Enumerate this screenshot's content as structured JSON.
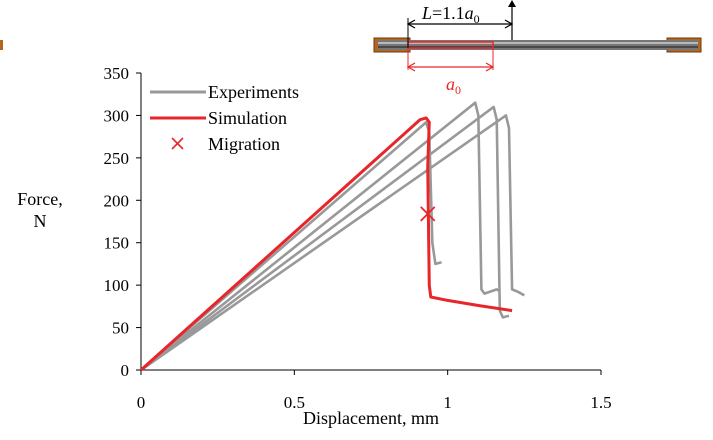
{
  "colors": {
    "experiment": "#999999",
    "simulation": "#e8262a",
    "migration": "#e8262a",
    "specimen_wood": "#b5651d",
    "specimen_rod": "#555555"
  },
  "inset": {
    "length_label_L": "L",
    "length_label_eq": "=1.1",
    "length_label_a": "a",
    "length_label_sub": "0",
    "crack_label_a": "a",
    "crack_label_sub": "0"
  },
  "chart_data": {
    "type": "line",
    "xlabel": "Displacement, mm",
    "ylabel_line1": "Force,",
    "ylabel_line2": "N",
    "xlim": [
      0,
      1.5
    ],
    "ylim": [
      0,
      350
    ],
    "xticks": [
      "0",
      "0.5",
      "1",
      "1.5"
    ],
    "yticks": [
      "0",
      "50",
      "100",
      "150",
      "200",
      "250",
      "300",
      "350"
    ],
    "legend": [
      {
        "name": "Experiments",
        "marker": "line",
        "color": "#999999"
      },
      {
        "name": "Simulation",
        "marker": "line",
        "color": "#e8262a"
      },
      {
        "name": "Migration",
        "marker": "x",
        "color": "#e8262a"
      }
    ],
    "series": [
      {
        "name": "Experiments",
        "color": "#999999",
        "points": [
          [
            0,
            0
          ],
          [
            0.93,
            292
          ],
          [
            0.94,
            280
          ],
          [
            0.95,
            150
          ],
          [
            0.96,
            125
          ],
          [
            0.98,
            127
          ]
        ]
      },
      {
        "color": "#999999",
        "points": [
          [
            0,
            0
          ],
          [
            1.09,
            315
          ],
          [
            1.1,
            300
          ],
          [
            1.11,
            95
          ],
          [
            1.12,
            90
          ],
          [
            1.16,
            95
          ],
          [
            1.17,
            93
          ]
        ]
      },
      {
        "color": "#999999",
        "points": [
          [
            0,
            0
          ],
          [
            1.15,
            310
          ],
          [
            1.16,
            295
          ],
          [
            1.17,
            70
          ],
          [
            1.18,
            62
          ],
          [
            1.2,
            64
          ]
        ]
      },
      {
        "color": "#999999",
        "points": [
          [
            0,
            0
          ],
          [
            1.19,
            300
          ],
          [
            1.2,
            285
          ],
          [
            1.21,
            95
          ],
          [
            1.23,
            92
          ],
          [
            1.25,
            88
          ]
        ]
      },
      {
        "name": "Simulation",
        "color": "#e8262a",
        "points": [
          [
            0,
            0
          ],
          [
            0.91,
            295
          ],
          [
            0.93,
            297
          ],
          [
            0.94,
            292
          ],
          [
            0.935,
            240
          ],
          [
            0.94,
            100
          ],
          [
            0.945,
            86
          ],
          [
            1.0,
            82
          ],
          [
            1.1,
            76
          ],
          [
            1.21,
            70
          ]
        ]
      }
    ],
    "markers": [
      {
        "name": "Migration",
        "x": 0.935,
        "y": 184
      }
    ]
  }
}
